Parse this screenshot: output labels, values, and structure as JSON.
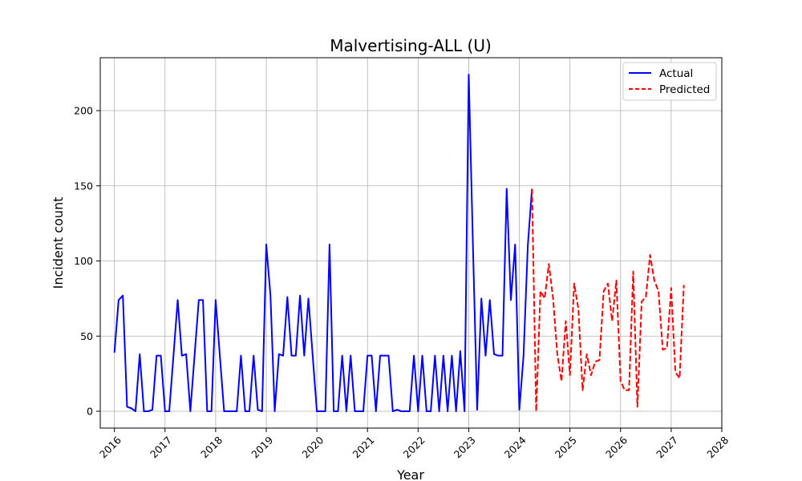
{
  "chart_data": {
    "type": "line",
    "title": "Malvertising-ALL (U)",
    "xlabel": "Year",
    "ylabel": "Incident count",
    "x_ticks": [
      "2016",
      "2017",
      "2018",
      "2019",
      "2020",
      "2021",
      "2022",
      "2023",
      "2024",
      "2025",
      "2026",
      "2027",
      "2028"
    ],
    "y_ticks": [
      0,
      50,
      100,
      150,
      200
    ],
    "xlim": [
      2015.72,
      2028.0
    ],
    "ylim": [
      -11.2,
      235.2
    ],
    "grid": true,
    "legend_position": "top-right",
    "series": [
      {
        "name": "Actual",
        "color": "#0000ff",
        "style": "solid",
        "x": [
          2016.0,
          2016.083,
          2016.167,
          2016.25,
          2016.333,
          2016.417,
          2016.5,
          2016.583,
          2016.667,
          2016.75,
          2016.833,
          2016.917,
          2017.0,
          2017.083,
          2017.167,
          2017.25,
          2017.333,
          2017.417,
          2017.5,
          2017.583,
          2017.667,
          2017.75,
          2017.833,
          2017.917,
          2018.0,
          2018.083,
          2018.167,
          2018.25,
          2018.333,
          2018.417,
          2018.5,
          2018.583,
          2018.667,
          2018.75,
          2018.833,
          2018.917,
          2019.0,
          2019.083,
          2019.167,
          2019.25,
          2019.333,
          2019.417,
          2019.5,
          2019.583,
          2019.667,
          2019.75,
          2019.833,
          2019.917,
          2020.0,
          2020.083,
          2020.167,
          2020.25,
          2020.333,
          2020.417,
          2020.5,
          2020.583,
          2020.667,
          2020.75,
          2020.833,
          2020.917,
          2021.0,
          2021.083,
          2021.167,
          2021.25,
          2021.333,
          2021.417,
          2021.5,
          2021.583,
          2021.667,
          2021.75,
          2021.833,
          2021.917,
          2022.0,
          2022.083,
          2022.167,
          2022.25,
          2022.333,
          2022.417,
          2022.5,
          2022.583,
          2022.667,
          2022.75,
          2022.833,
          2022.917,
          2023.0,
          2023.083,
          2023.167,
          2023.25,
          2023.333,
          2023.417,
          2023.5,
          2023.583,
          2023.667,
          2023.75,
          2023.833,
          2023.917,
          2024.0,
          2024.083,
          2024.167,
          2024.25
        ],
        "values": [
          39,
          74,
          77,
          3,
          2,
          0,
          38,
          0,
          0,
          1,
          37,
          37,
          0,
          0,
          37,
          74,
          37,
          38,
          0,
          37,
          74,
          74,
          0,
          0,
          74,
          37,
          0,
          0,
          0,
          0,
          37,
          0,
          0,
          37,
          1,
          0,
          111,
          77,
          0,
          38,
          37,
          76,
          37,
          37,
          77,
          37,
          75,
          37,
          0,
          0,
          0,
          111,
          0,
          0,
          37,
          0,
          37,
          0,
          0,
          0,
          37,
          37,
          0,
          37,
          37,
          37,
          0,
          1,
          0,
          0,
          0,
          37,
          0,
          37,
          0,
          0,
          37,
          0,
          37,
          0,
          37,
          0,
          40,
          0,
          224,
          111,
          1,
          75,
          37,
          74,
          38,
          37,
          37,
          148,
          74,
          111,
          1,
          37,
          110,
          148
        ]
      },
      {
        "name": "Predicted",
        "color": "#ff0000",
        "style": "dashed",
        "x": [
          2024.25,
          2024.333,
          2024.417,
          2024.5,
          2024.583,
          2024.667,
          2024.75,
          2024.833,
          2024.917,
          2025.0,
          2025.083,
          2025.167,
          2025.25,
          2025.333,
          2025.417,
          2025.5,
          2025.583,
          2025.667,
          2025.75,
          2025.833,
          2025.917,
          2026.0,
          2026.083,
          2026.167,
          2026.25,
          2026.333,
          2026.417,
          2026.5,
          2026.583,
          2026.667,
          2026.75,
          2026.833,
          2026.917,
          2027.0,
          2027.083,
          2027.167,
          2027.25
        ],
        "values": [
          148,
          0,
          80,
          75,
          98,
          75,
          38,
          20,
          60,
          24,
          85,
          68,
          14,
          38,
          24,
          33,
          34,
          80,
          85,
          60,
          87,
          20,
          14,
          14,
          93,
          3,
          73,
          76,
          104,
          87,
          80,
          41,
          42,
          82,
          26,
          22,
          84
        ]
      }
    ]
  }
}
